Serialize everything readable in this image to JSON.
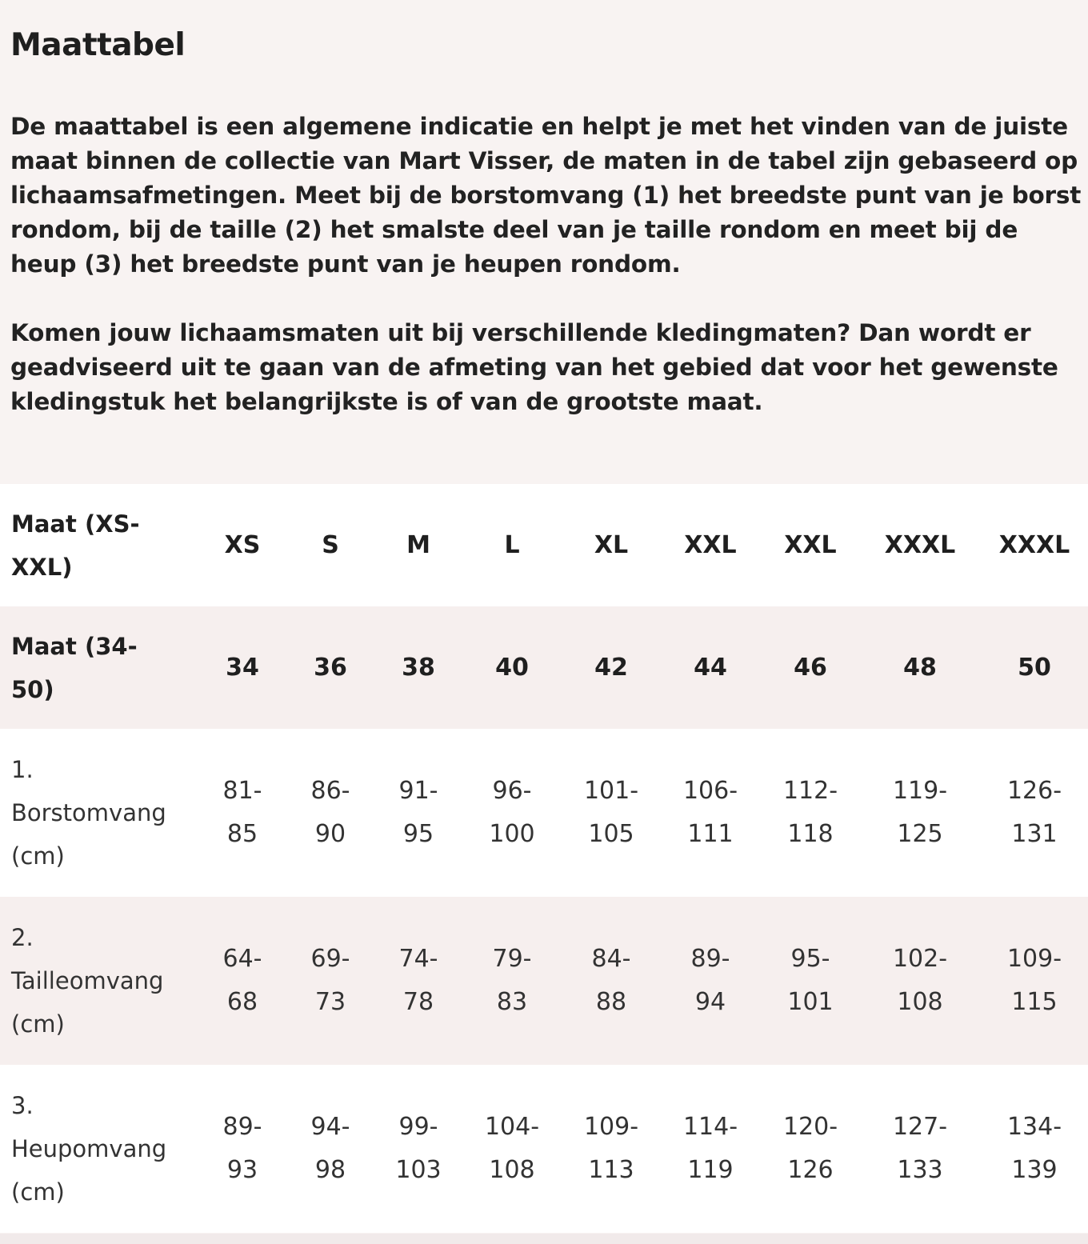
{
  "title": "Maattabel",
  "paragraphs": [
    "De maattabel is een algemene indicatie en helpt je met het vinden van de juiste maat binnen de collectie van Mart Visser, de maten in de tabel zijn gebaseerd op lichaamsafmetingen. Meet bij de borstomvang (1) het breedste punt van je borst rondom, bij de taille (2) het smalste deel van je taille rondom en meet bij de heup (3) het breedste punt van je heupen rondom.",
    "Komen jouw lichaamsmaten uit bij verschillende kledingmaten? Dan wordt er geadviseerd uit te gaan van de afmeting van het gebied dat voor het gewenste kledingstuk het belangrijkste is of van de grootste maat."
  ],
  "table": {
    "rows": [
      {
        "label": "Maat (XS-XXL)",
        "cells": [
          "XS",
          "S",
          "M",
          "L",
          "XL",
          "XXL",
          "XXL",
          "XXXL",
          "XXXL"
        ]
      },
      {
        "label": "Maat (34-50)",
        "cells": [
          "34",
          "36",
          "38",
          "40",
          "42",
          "44",
          "46",
          "48",
          "50"
        ]
      },
      {
        "label": "1. Borstomvang (cm)",
        "cells": [
          "81-85",
          "86-90",
          "91-95",
          "96-100",
          "101-105",
          "106-111",
          "112-118",
          "119-125",
          "126-131"
        ]
      },
      {
        "label": "2. Tailleomvang (cm)",
        "cells": [
          "64-68",
          "69-73",
          "74-78",
          "79-83",
          "84-88",
          "89-94",
          "95-101",
          "102-108",
          "109-115"
        ]
      },
      {
        "label": "3. Heupomvang (cm)",
        "cells": [
          "89-93",
          "94-98",
          "99-103",
          "104-108",
          "109-113",
          "114-119",
          "120-126",
          "127-133",
          "134-139"
        ]
      }
    ]
  },
  "colors": {
    "background": "#f8f3f2",
    "row_alt": "#f6efee",
    "row": "#ffffff",
    "text": "#1f1f1f"
  }
}
